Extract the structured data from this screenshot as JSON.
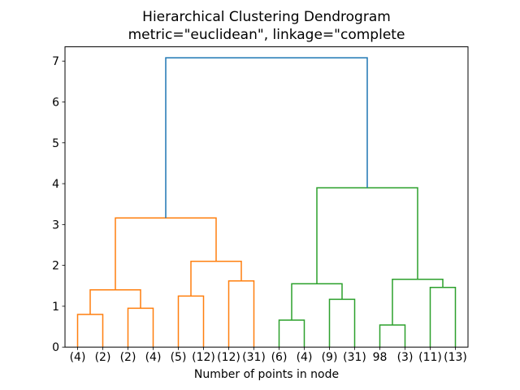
{
  "chart_data": {
    "type": "dendrogram",
    "title": "Hierarchical Clustering Dendrogram",
    "subtitle": "metric=\"euclidean\", linkage=\"complete",
    "xlabel": "Number of points in node",
    "leaves": [
      "(4)",
      "(2)",
      "(2)",
      "(4)",
      "(5)",
      "(12)",
      "(12)",
      "(31)",
      "(6)",
      "(4)",
      "(9)",
      "(31)",
      "98",
      "(3)",
      "(11)",
      "(13)"
    ],
    "yticks": [
      0,
      1,
      2,
      3,
      4,
      5,
      6,
      7
    ],
    "ylim": [
      0,
      7.35
    ],
    "grid": false,
    "legend": "none",
    "colors": {
      "above_threshold": "#1f77b4",
      "cluster1": "#ff7f0e",
      "cluster2": "#2ca02c",
      "axis": "#000000",
      "background": "#ffffff"
    },
    "links": [
      {
        "id": "m0",
        "a": "L0",
        "b": "L1",
        "height": 0.8,
        "color": "cluster1"
      },
      {
        "id": "m1",
        "a": "L2",
        "b": "L3",
        "height": 0.95,
        "color": "cluster1"
      },
      {
        "id": "m2",
        "a": "m0",
        "b": "m1",
        "height": 1.4,
        "color": "cluster1"
      },
      {
        "id": "m3",
        "a": "L4",
        "b": "L5",
        "height": 1.25,
        "color": "cluster1"
      },
      {
        "id": "m4",
        "a": "L6",
        "b": "L7",
        "height": 1.62,
        "color": "cluster1"
      },
      {
        "id": "m5",
        "a": "m3",
        "b": "m4",
        "height": 2.1,
        "color": "cluster1"
      },
      {
        "id": "m6",
        "a": "m2",
        "b": "m5",
        "height": 3.16,
        "color": "cluster1"
      },
      {
        "id": "m7",
        "a": "L8",
        "b": "L9",
        "height": 0.66,
        "color": "cluster2"
      },
      {
        "id": "m8",
        "a": "L10",
        "b": "L11",
        "height": 1.17,
        "color": "cluster2"
      },
      {
        "id": "m9",
        "a": "m7",
        "b": "m8",
        "height": 1.55,
        "color": "cluster2"
      },
      {
        "id": "m10",
        "a": "L12",
        "b": "L13",
        "height": 0.54,
        "color": "cluster2"
      },
      {
        "id": "m11",
        "a": "L14",
        "b": "L15",
        "height": 1.46,
        "color": "cluster2"
      },
      {
        "id": "m12",
        "a": "m10",
        "b": "m11",
        "height": 1.66,
        "color": "cluster2"
      },
      {
        "id": "m13",
        "a": "m9",
        "b": "m12",
        "height": 3.9,
        "color": "cluster2"
      },
      {
        "id": "m14",
        "a": "m6",
        "b": "m13",
        "height": 7.08,
        "color": "above_threshold"
      }
    ]
  }
}
